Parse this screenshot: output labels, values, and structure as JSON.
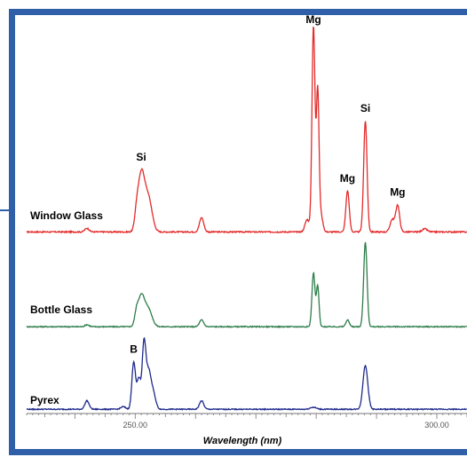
{
  "chart_data": {
    "type": "line",
    "title": "",
    "xlabel": "Wavelength (nm)",
    "ylabel": "",
    "xlim": [
      232,
      305
    ],
    "x_ticks": [
      {
        "value": 250,
        "label": "250.00"
      },
      {
        "value": 300,
        "label": "300.00"
      }
    ],
    "colors": {
      "frame": "#2f5fa8",
      "window": "#e32b2b",
      "bottle": "#2e7d4a",
      "pyrex": "#1f2a8c",
      "axis": "#777777"
    },
    "series": [
      {
        "name": "Window Glass",
        "color_key": "window",
        "baseline": 0.02,
        "peaks": [
          {
            "x": 242.0,
            "h": 0.018,
            "w": 0.35
          },
          {
            "x": 250.2,
            "h": 0.06,
            "w": 0.3
          },
          {
            "x": 251.0,
            "h": 0.28,
            "w": 0.55
          },
          {
            "x": 252.2,
            "h": 0.16,
            "w": 0.6
          },
          {
            "x": 261.0,
            "h": 0.07,
            "w": 0.35
          },
          {
            "x": 278.5,
            "h": 0.06,
            "w": 0.35
          },
          {
            "x": 279.55,
            "h": 1.0,
            "w": 0.25
          },
          {
            "x": 280.25,
            "h": 0.68,
            "w": 0.22
          },
          {
            "x": 280.8,
            "h": 0.08,
            "w": 0.3
          },
          {
            "x": 285.2,
            "h": 0.2,
            "w": 0.28
          },
          {
            "x": 288.15,
            "h": 0.54,
            "w": 0.28
          },
          {
            "x": 292.6,
            "h": 0.06,
            "w": 0.35
          },
          {
            "x": 293.5,
            "h": 0.13,
            "w": 0.32
          },
          {
            "x": 298.0,
            "h": 0.015,
            "w": 0.4
          }
        ]
      },
      {
        "name": "Bottle Glass",
        "color_key": "bottle",
        "baseline": 0.02,
        "peaks": [
          {
            "x": 242.0,
            "h": 0.012,
            "w": 0.35
          },
          {
            "x": 250.2,
            "h": 0.06,
            "w": 0.3
          },
          {
            "x": 251.0,
            "h": 0.18,
            "w": 0.55
          },
          {
            "x": 252.2,
            "h": 0.1,
            "w": 0.6
          },
          {
            "x": 261.0,
            "h": 0.04,
            "w": 0.35
          },
          {
            "x": 279.55,
            "h": 0.32,
            "w": 0.25
          },
          {
            "x": 280.25,
            "h": 0.24,
            "w": 0.22
          },
          {
            "x": 285.2,
            "h": 0.04,
            "w": 0.28
          },
          {
            "x": 288.15,
            "h": 0.5,
            "w": 0.28
          }
        ]
      },
      {
        "name": "Pyrex",
        "color_key": "pyrex",
        "baseline": 0.02,
        "peaks": [
          {
            "x": 242.0,
            "h": 0.05,
            "w": 0.35
          },
          {
            "x": 248.0,
            "h": 0.015,
            "w": 0.4
          },
          {
            "x": 249.75,
            "h": 0.28,
            "w": 0.3
          },
          {
            "x": 250.6,
            "h": 0.18,
            "w": 0.3
          },
          {
            "x": 251.45,
            "h": 0.38,
            "w": 0.3
          },
          {
            "x": 252.2,
            "h": 0.22,
            "w": 0.4
          },
          {
            "x": 253.0,
            "h": 0.09,
            "w": 0.4
          },
          {
            "x": 261.0,
            "h": 0.05,
            "w": 0.35
          },
          {
            "x": 279.5,
            "h": 0.012,
            "w": 0.5
          },
          {
            "x": 288.15,
            "h": 0.26,
            "w": 0.4
          }
        ]
      }
    ],
    "annotations": [
      {
        "text": "Si",
        "series": "Window Glass",
        "x": 251.0
      },
      {
        "text": "Mg",
        "series": "Window Glass",
        "x": 279.55
      },
      {
        "text": "Mg",
        "series": "Window Glass",
        "x": 285.2
      },
      {
        "text": "Si",
        "series": "Window Glass",
        "x": 288.15
      },
      {
        "text": "Mg",
        "series": "Window Glass",
        "x": 293.5
      },
      {
        "text": "B",
        "series": "Pyrex",
        "x": 249.75
      }
    ]
  }
}
